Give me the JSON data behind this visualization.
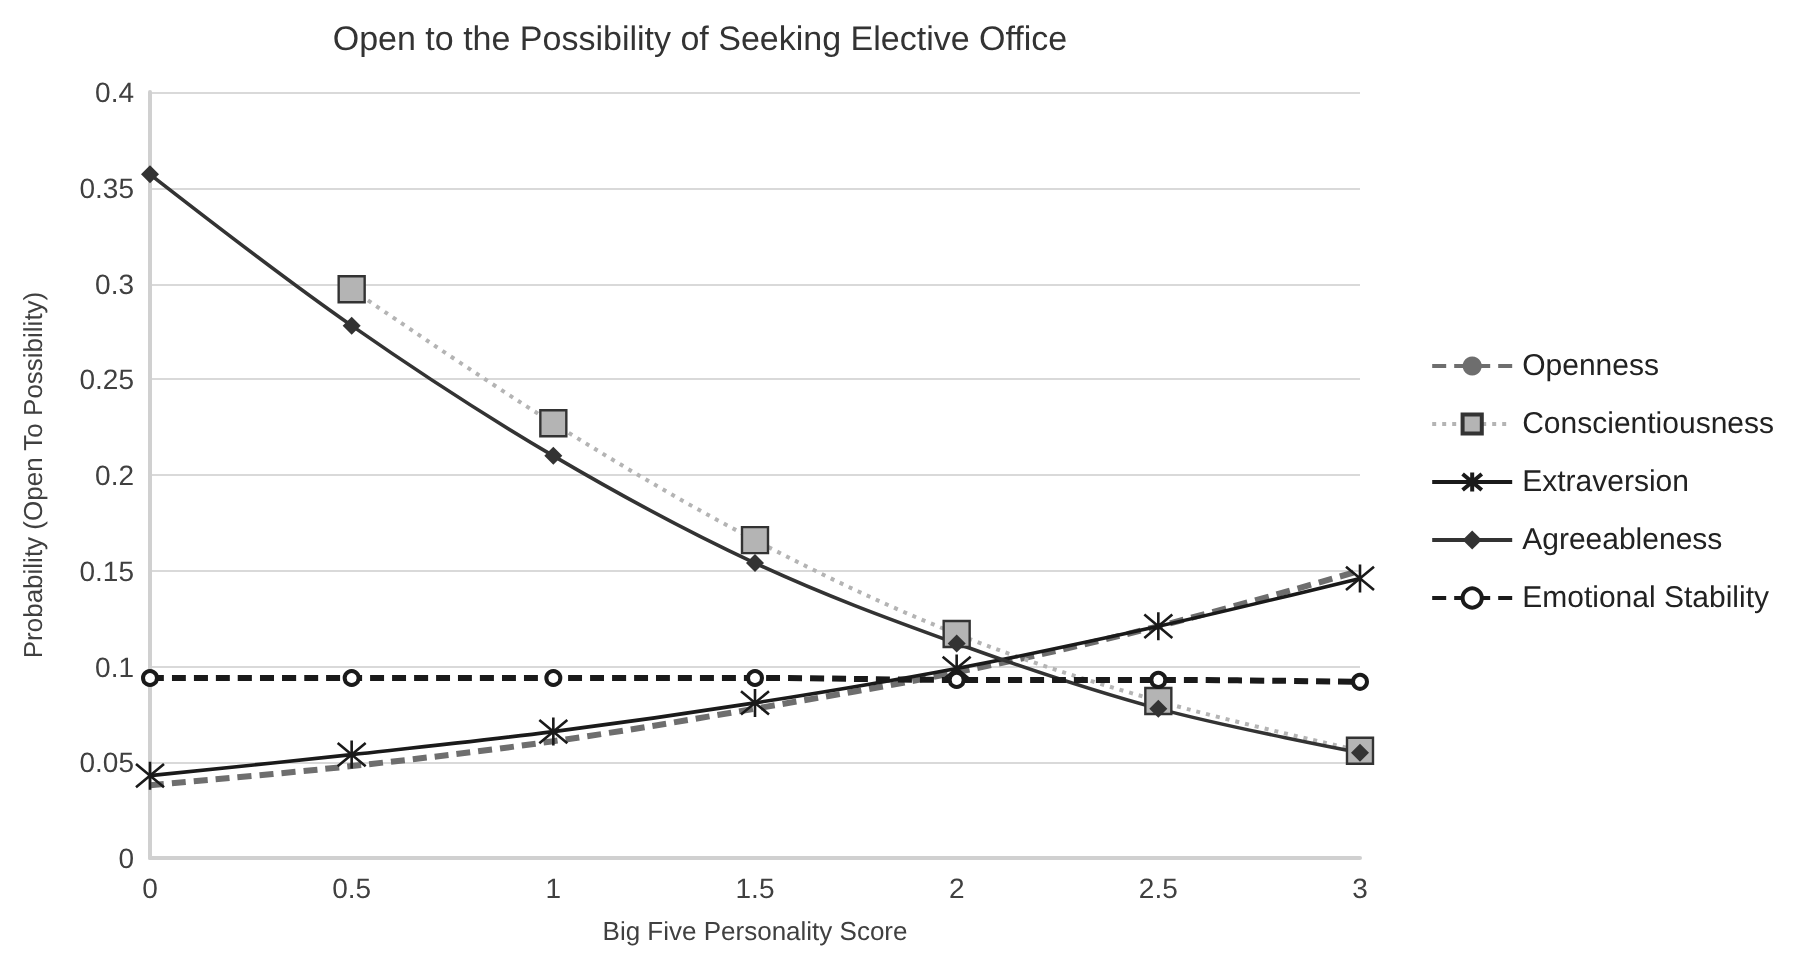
{
  "chart_data": {
    "type": "line",
    "title": "Open to the Possibility of Seeking Elective Office",
    "xlabel": "Big Five Personality Score",
    "ylabel": "Probability (Open To Possibility)",
    "x": [
      0,
      0.5,
      1,
      1.5,
      2,
      2.5,
      3
    ],
    "series": [
      {
        "name": "Openness",
        "color": "#6e6e6e",
        "line_style": "dashed",
        "marker": "none",
        "values": [
          0.038,
          0.048,
          0.061,
          0.078,
          0.097,
          0.121,
          0.15
        ]
      },
      {
        "name": "Conscientiousness",
        "color": "#b4b4b4",
        "line_style": "dotted",
        "marker": "square",
        "values": [
          null,
          0.297,
          0.227,
          0.166,
          0.117,
          0.082,
          0.056
        ]
      },
      {
        "name": "Extraversion",
        "color": "#1a1a1a",
        "line_style": "solid",
        "marker": "cross",
        "values": [
          0.043,
          0.054,
          0.066,
          0.081,
          0.099,
          0.121,
          0.146
        ]
      },
      {
        "name": "Agreeableness",
        "color": "#333333",
        "line_style": "solid",
        "marker": "diamond",
        "values": [
          0.357,
          0.278,
          0.21,
          0.154,
          0.112,
          0.078,
          0.055
        ]
      },
      {
        "name": "Emotional Stability",
        "color": "#1a1a1a",
        "line_style": "dashed",
        "marker": "circle",
        "values": [
          0.094,
          0.094,
          0.094,
          0.094,
          0.093,
          0.093,
          0.092
        ]
      }
    ],
    "xlim": [
      0,
      3
    ],
    "xticks": [
      0,
      0.5,
      1,
      1.5,
      2,
      2.5,
      3
    ],
    "ylim": [
      0,
      0.4
    ],
    "yticks": [
      0,
      0.05,
      0.1,
      0.15,
      0.2,
      0.25,
      0.3,
      0.35,
      0.4
    ],
    "grid": "y",
    "legend": "right"
  }
}
